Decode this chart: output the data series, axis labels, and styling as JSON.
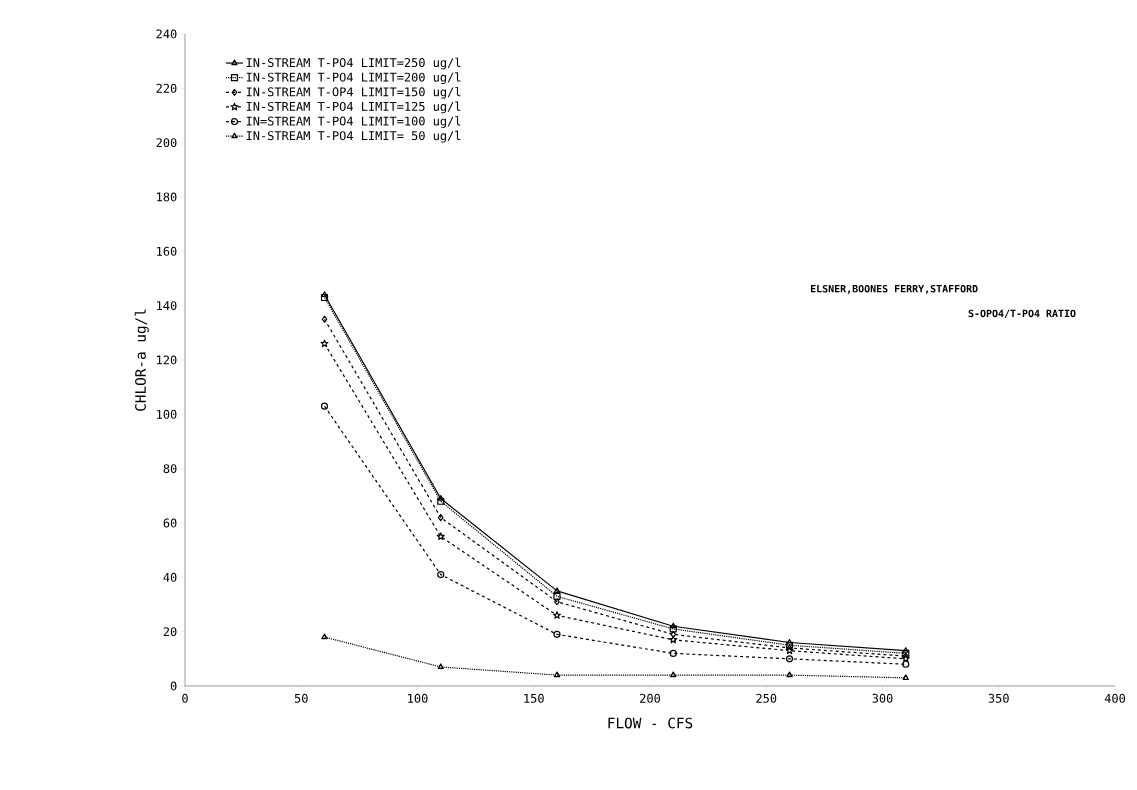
{
  "chart_data": {
    "type": "line",
    "xlabel": "FLOW - CFS",
    "ylabel": "CHLOR-a ug/l",
    "x": [
      60,
      110,
      160,
      210,
      260,
      310
    ],
    "xlim": [
      0,
      400
    ],
    "xticks": [
      0,
      50,
      100,
      150,
      200,
      250,
      300,
      350,
      400
    ],
    "ylim": [
      0,
      240
    ],
    "yticks": [
      0,
      20,
      40,
      60,
      80,
      100,
      120,
      140,
      160,
      180,
      200,
      220,
      240
    ],
    "grid": false,
    "legend": "top left",
    "annotations": [
      "ELSNER,BOONES FERRY,STAFFORD",
      "S-OPO4/T-PO4 RATIO"
    ],
    "series": [
      {
        "name": "IN-STREAM T-PO4 LIMIT=250 ug/l",
        "color": "#000000",
        "marker": "triangle",
        "line_style": "solid",
        "values": [
          144,
          69,
          35,
          22,
          16,
          13
        ]
      },
      {
        "name": "IN-STREAM T-PO4 LIMIT=200 ug/l",
        "color": "#000000",
        "marker": "square",
        "line_style": "dotted",
        "values": [
          143,
          68,
          33,
          21,
          15,
          12
        ]
      },
      {
        "name": "IN-STREAM T-OP4 LIMIT=150 ug/l",
        "color": "#000000",
        "marker": "diamond",
        "line_style": "dashed",
        "values": [
          135,
          62,
          31,
          19,
          14,
          11
        ]
      },
      {
        "name": "IN-STREAM T-PO4 LIMIT=125 ug/l",
        "color": "#000000",
        "marker": "star",
        "line_style": "dashed",
        "values": [
          126,
          55,
          26,
          17,
          13,
          10
        ]
      },
      {
        "name": "IN=STREAM T-PO4 LIMIT=100 ug/l",
        "color": "#000000",
        "marker": "circle",
        "line_style": "dashed",
        "values": [
          103,
          41,
          19,
          12,
          10,
          8
        ]
      },
      {
        "name": "IN-STREAM T-PO4 LIMIT= 50 ug/l",
        "color": "#000000",
        "marker": "triangle",
        "line_style": "dotted",
        "values": [
          18,
          7,
          4,
          4,
          4,
          3
        ]
      }
    ]
  }
}
